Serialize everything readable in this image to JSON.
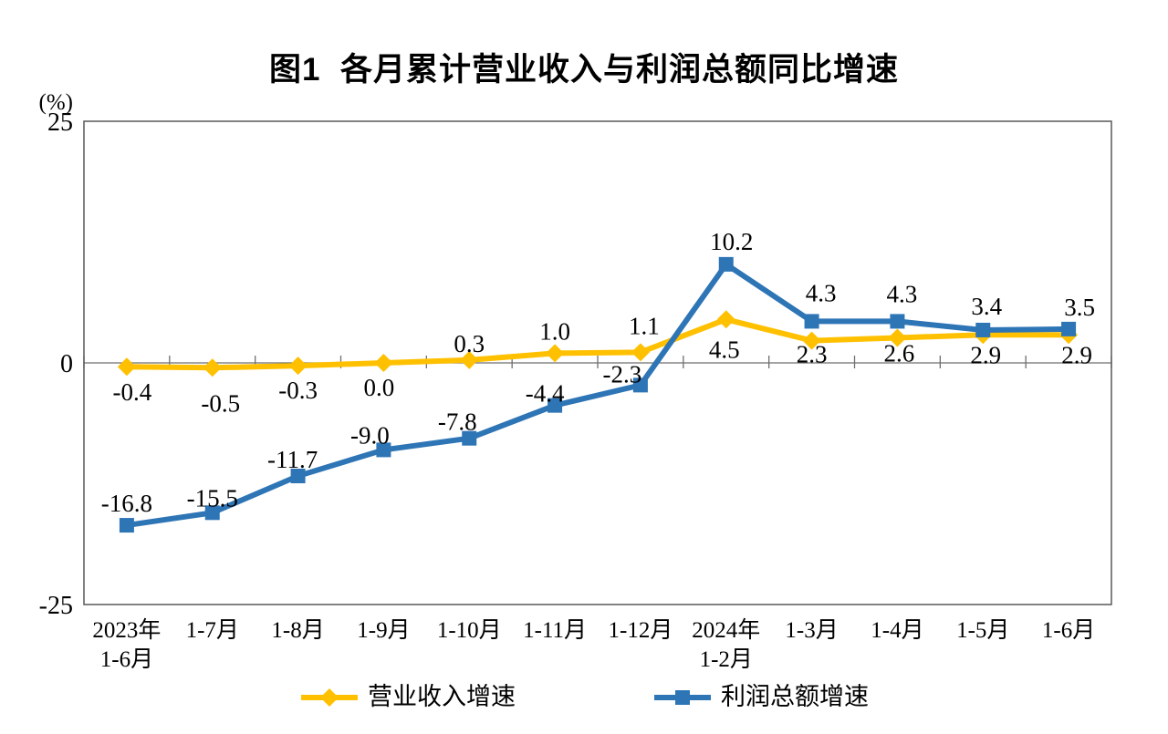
{
  "chart_data": {
    "type": "line",
    "title": "图1  各月累计营业收入与利润总额同比增速",
    "unit": "(%)",
    "categories": [
      [
        "2023年",
        "1-6月"
      ],
      [
        "1-7月"
      ],
      [
        "1-8月"
      ],
      [
        "1-9月"
      ],
      [
        "1-10月"
      ],
      [
        "1-11月"
      ],
      [
        "1-12月"
      ],
      [
        "2024年",
        "1-2月"
      ],
      [
        "1-3月"
      ],
      [
        "1-4月"
      ],
      [
        "1-5月"
      ],
      [
        "1-6月"
      ]
    ],
    "series": [
      {
        "name": "营业收入增速",
        "color": "#FFC000",
        "marker": "diamond",
        "values": [
          -0.4,
          -0.5,
          -0.3,
          0.0,
          0.3,
          1.0,
          1.1,
          4.5,
          2.3,
          2.6,
          2.9,
          2.9
        ],
        "label_side": [
          "below",
          "below",
          "below",
          "below",
          "above",
          "above",
          "above",
          "below",
          "below",
          "below",
          "below",
          "below"
        ]
      },
      {
        "name": "利润总额增速",
        "color": "#2E75B6",
        "marker": "square",
        "values": [
          -16.8,
          -15.5,
          -11.7,
          -9.0,
          -7.8,
          -4.4,
          -2.3,
          10.2,
          4.3,
          4.3,
          3.4,
          3.5
        ],
        "label_side": [
          "above",
          "above",
          "above",
          "above",
          "above",
          "above",
          "above",
          "above",
          "above",
          "above",
          "above",
          "above"
        ]
      }
    ],
    "ylim": [
      -25,
      25
    ],
    "yticks": [
      25,
      0,
      -25
    ],
    "grid": "zero-line-only",
    "legend_position": "bottom",
    "axis_color": "#595959",
    "zero_line_color": "#6E6E6E",
    "text_color": "#000000",
    "background_color": "#FFFFFF"
  }
}
